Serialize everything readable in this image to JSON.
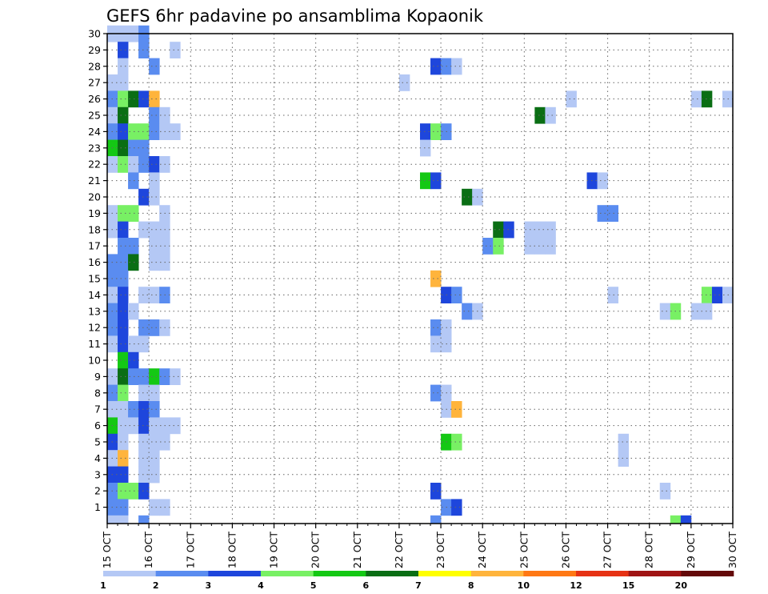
{
  "chart_data": {
    "type": "heatmap",
    "title": "GEFS 6hr padavine po ansamblima Kopaonik",
    "xlabel": "",
    "ylabel": "",
    "x_ticks": [
      "15 OCT",
      "16 OCT",
      "17 OCT",
      "18 OCT",
      "19 OCT",
      "20 OCT",
      "21 OCT",
      "22 OCT",
      "23 OCT",
      "24 OCT",
      "25 OCT",
      "26 OCT",
      "27 OCT",
      "28 OCT",
      "29 OCT",
      "30 OCT"
    ],
    "y_ticks": [
      1,
      2,
      3,
      4,
      5,
      6,
      7,
      8,
      9,
      10,
      11,
      12,
      13,
      14,
      15,
      16,
      17,
      18,
      19,
      20,
      21,
      22,
      23,
      24,
      25,
      26,
      27,
      28,
      29,
      30
    ],
    "xlim": [
      0,
      60
    ],
    "ylim": [
      0,
      30
    ],
    "x_step": "6hr",
    "grid": true,
    "colorbar": {
      "labels": [
        "1",
        "2",
        "3",
        "4",
        "5",
        "6",
        "7",
        "8",
        "10",
        "12",
        "15",
        "20"
      ],
      "colors": [
        "#b4c8f5",
        "#5a8cf0",
        "#1e46dc",
        "#78f064",
        "#14c814",
        "#0a6e14",
        "#ffff00",
        "#ffb43c",
        "#ff7814",
        "#e63214",
        "#a01414",
        "#640a0a"
      ]
    },
    "cells": [
      [
        0,
        30,
        1
      ],
      [
        1,
        30,
        1
      ],
      [
        2,
        30,
        1
      ],
      [
        3,
        30,
        2
      ],
      [
        1,
        29,
        3
      ],
      [
        3,
        29,
        2
      ],
      [
        6,
        29,
        1
      ],
      [
        1,
        28,
        1
      ],
      [
        4,
        28,
        2
      ],
      [
        31,
        28,
        3
      ],
      [
        32,
        28,
        2
      ],
      [
        33,
        28,
        1
      ],
      [
        0,
        27,
        1
      ],
      [
        1,
        27,
        1
      ],
      [
        28,
        27,
        1
      ],
      [
        0,
        26,
        2
      ],
      [
        1,
        26,
        4
      ],
      [
        2,
        26,
        6
      ],
      [
        3,
        26,
        3
      ],
      [
        4,
        26,
        8
      ],
      [
        44,
        26,
        1
      ],
      [
        56,
        26,
        1
      ],
      [
        57,
        26,
        6
      ],
      [
        59,
        26,
        1
      ],
      [
        60,
        26,
        3
      ],
      [
        0,
        25,
        1
      ],
      [
        1,
        25,
        6
      ],
      [
        4,
        25,
        2
      ],
      [
        5,
        25,
        1
      ],
      [
        41,
        25,
        6
      ],
      [
        42,
        25,
        1
      ],
      [
        0,
        24,
        2
      ],
      [
        1,
        24,
        3
      ],
      [
        2,
        24,
        4
      ],
      [
        3,
        24,
        4
      ],
      [
        4,
        24,
        2
      ],
      [
        5,
        24,
        1
      ],
      [
        6,
        24,
        1
      ],
      [
        30,
        24,
        3
      ],
      [
        31,
        24,
        4
      ],
      [
        32,
        24,
        2
      ],
      [
        0,
        23,
        5
      ],
      [
        1,
        23,
        6
      ],
      [
        2,
        23,
        2
      ],
      [
        3,
        23,
        2
      ],
      [
        30,
        23,
        1
      ],
      [
        0,
        22,
        1
      ],
      [
        1,
        22,
        4
      ],
      [
        2,
        22,
        1
      ],
      [
        3,
        22,
        2
      ],
      [
        4,
        22,
        3
      ],
      [
        5,
        22,
        1
      ],
      [
        2,
        21,
        2
      ],
      [
        4,
        21,
        1
      ],
      [
        30,
        21,
        5
      ],
      [
        31,
        21,
        3
      ],
      [
        46,
        21,
        3
      ],
      [
        47,
        21,
        1
      ],
      [
        3,
        20,
        3
      ],
      [
        4,
        20,
        1
      ],
      [
        34,
        20,
        6
      ],
      [
        35,
        20,
        1
      ],
      [
        0,
        19,
        1
      ],
      [
        1,
        19,
        4
      ],
      [
        2,
        19,
        4
      ],
      [
        5,
        19,
        1
      ],
      [
        47,
        19,
        2
      ],
      [
        48,
        19,
        2
      ],
      [
        0,
        18,
        1
      ],
      [
        1,
        18,
        3
      ],
      [
        3,
        18,
        1
      ],
      [
        4,
        18,
        1
      ],
      [
        5,
        18,
        1
      ],
      [
        37,
        18,
        6
      ],
      [
        38,
        18,
        3
      ],
      [
        40,
        18,
        1
      ],
      [
        41,
        18,
        1
      ],
      [
        42,
        18,
        1
      ],
      [
        1,
        17,
        2
      ],
      [
        2,
        17,
        2
      ],
      [
        4,
        17,
        1
      ],
      [
        5,
        17,
        1
      ],
      [
        36,
        17,
        2
      ],
      [
        37,
        17,
        4
      ],
      [
        40,
        17,
        1
      ],
      [
        41,
        17,
        1
      ],
      [
        42,
        17,
        1
      ],
      [
        0,
        16,
        2
      ],
      [
        1,
        16,
        2
      ],
      [
        2,
        16,
        6
      ],
      [
        4,
        16,
        1
      ],
      [
        5,
        16,
        1
      ],
      [
        0,
        15,
        2
      ],
      [
        1,
        15,
        2
      ],
      [
        31,
        15,
        8
      ],
      [
        0,
        14,
        1
      ],
      [
        1,
        14,
        3
      ],
      [
        3,
        14,
        1
      ],
      [
        4,
        14,
        1
      ],
      [
        5,
        14,
        2
      ],
      [
        32,
        14,
        3
      ],
      [
        33,
        14,
        2
      ],
      [
        48,
        14,
        1
      ],
      [
        57,
        14,
        4
      ],
      [
        58,
        14,
        3
      ],
      [
        59,
        14,
        1
      ],
      [
        0,
        13,
        2
      ],
      [
        1,
        13,
        3
      ],
      [
        2,
        13,
        1
      ],
      [
        34,
        13,
        2
      ],
      [
        35,
        13,
        1
      ],
      [
        53,
        13,
        1
      ],
      [
        54,
        13,
        4
      ],
      [
        56,
        13,
        1
      ],
      [
        57,
        13,
        1
      ],
      [
        0,
        12,
        2
      ],
      [
        1,
        12,
        3
      ],
      [
        3,
        12,
        2
      ],
      [
        4,
        12,
        2
      ],
      [
        5,
        12,
        1
      ],
      [
        31,
        12,
        2
      ],
      [
        32,
        12,
        1
      ],
      [
        0,
        11,
        1
      ],
      [
        1,
        11,
        3
      ],
      [
        2,
        11,
        1
      ],
      [
        3,
        11,
        1
      ],
      [
        31,
        11,
        1
      ],
      [
        32,
        11,
        1
      ],
      [
        1,
        10,
        5
      ],
      [
        2,
        10,
        3
      ],
      [
        0,
        9,
        1
      ],
      [
        1,
        9,
        6
      ],
      [
        2,
        9,
        2
      ],
      [
        3,
        9,
        2
      ],
      [
        4,
        9,
        5
      ],
      [
        5,
        9,
        2
      ],
      [
        6,
        9,
        1
      ],
      [
        0,
        8,
        2
      ],
      [
        1,
        8,
        4
      ],
      [
        3,
        8,
        1
      ],
      [
        4,
        8,
        1
      ],
      [
        31,
        8,
        2
      ],
      [
        32,
        8,
        1
      ],
      [
        0,
        7,
        1
      ],
      [
        1,
        7,
        1
      ],
      [
        2,
        7,
        2
      ],
      [
        3,
        7,
        3
      ],
      [
        4,
        7,
        2
      ],
      [
        32,
        7,
        1
      ],
      [
        33,
        7,
        8
      ],
      [
        0,
        6,
        5
      ],
      [
        1,
        6,
        1
      ],
      [
        2,
        6,
        1
      ],
      [
        3,
        6,
        3
      ],
      [
        4,
        6,
        1
      ],
      [
        5,
        6,
        1
      ],
      [
        6,
        6,
        1
      ],
      [
        60,
        6,
        3
      ],
      [
        0,
        5,
        3
      ],
      [
        1,
        5,
        1
      ],
      [
        3,
        5,
        1
      ],
      [
        4,
        5,
        1
      ],
      [
        5,
        5,
        1
      ],
      [
        32,
        5,
        5
      ],
      [
        33,
        5,
        4
      ],
      [
        49,
        5,
        1
      ],
      [
        0,
        4,
        1
      ],
      [
        1,
        4,
        8
      ],
      [
        3,
        4,
        1
      ],
      [
        4,
        4,
        1
      ],
      [
        49,
        4,
        1
      ],
      [
        0,
        3,
        3
      ],
      [
        1,
        3,
        3
      ],
      [
        3,
        3,
        1
      ],
      [
        4,
        3,
        1
      ],
      [
        0,
        2,
        2
      ],
      [
        1,
        2,
        4
      ],
      [
        2,
        2,
        4
      ],
      [
        3,
        2,
        3
      ],
      [
        31,
        2,
        3
      ],
      [
        53,
        2,
        1
      ],
      [
        0,
        1,
        2
      ],
      [
        1,
        1,
        2
      ],
      [
        4,
        1,
        1
      ],
      [
        5,
        1,
        1
      ],
      [
        32,
        1,
        2
      ],
      [
        33,
        1,
        3
      ],
      [
        0,
        0,
        1
      ],
      [
        1,
        0,
        1
      ],
      [
        3,
        0,
        2
      ],
      [
        31,
        0,
        2
      ],
      [
        54,
        0,
        4
      ],
      [
        55,
        0,
        3
      ],
      [
        0,
        -1,
        2
      ],
      [
        1,
        -1,
        3
      ],
      [
        2,
        -1,
        2
      ],
      [
        3,
        -1,
        2
      ],
      [
        4,
        -1,
        1
      ],
      [
        5,
        -1,
        1
      ],
      [
        6,
        -1,
        1
      ],
      [
        30,
        -1,
        4
      ],
      [
        31,
        -1,
        2
      ]
    ]
  }
}
